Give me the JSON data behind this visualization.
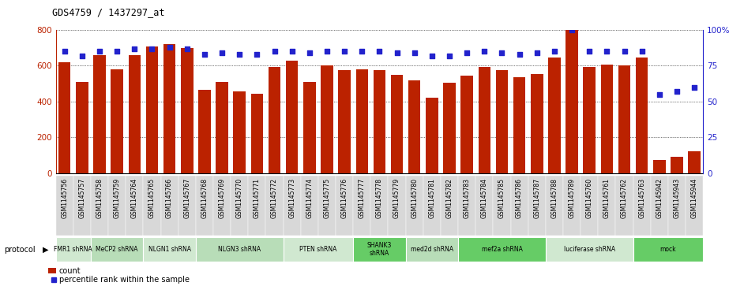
{
  "title": "GDS4759 / 1437297_at",
  "samples": [
    "GSM1145756",
    "GSM1145757",
    "GSM1145758",
    "GSM1145759",
    "GSM1145764",
    "GSM1145765",
    "GSM1145766",
    "GSM1145767",
    "GSM1145768",
    "GSM1145769",
    "GSM1145770",
    "GSM1145771",
    "GSM1145772",
    "GSM1145773",
    "GSM1145774",
    "GSM1145775",
    "GSM1145776",
    "GSM1145777",
    "GSM1145778",
    "GSM1145779",
    "GSM1145780",
    "GSM1145781",
    "GSM1145782",
    "GSM1145783",
    "GSM1145784",
    "GSM1145785",
    "GSM1145786",
    "GSM1145787",
    "GSM1145788",
    "GSM1145789",
    "GSM1145760",
    "GSM1145761",
    "GSM1145762",
    "GSM1145763",
    "GSM1145942",
    "GSM1145943",
    "GSM1145944"
  ],
  "counts": [
    620,
    510,
    660,
    580,
    660,
    710,
    720,
    700,
    465,
    510,
    455,
    445,
    595,
    630,
    510,
    600,
    575,
    580,
    575,
    550,
    520,
    420,
    505,
    545,
    595,
    575,
    535,
    555,
    645,
    800,
    595,
    605,
    600,
    645,
    75,
    90,
    120
  ],
  "percentiles": [
    85,
    82,
    85,
    85,
    87,
    87,
    88,
    87,
    83,
    84,
    83,
    83,
    85,
    85,
    84,
    85,
    85,
    85,
    85,
    84,
    84,
    82,
    82,
    84,
    85,
    84,
    83,
    84,
    85,
    100,
    85,
    85,
    85,
    85,
    55,
    57,
    60
  ],
  "protocols": [
    {
      "label": "FMR1 shRNA",
      "start": 0,
      "end": 2,
      "color": "#d0e8d0"
    },
    {
      "label": "MeCP2 shRNA",
      "start": 2,
      "end": 5,
      "color": "#b8ddb8"
    },
    {
      "label": "NLGN1 shRNA",
      "start": 5,
      "end": 8,
      "color": "#d0e8d0"
    },
    {
      "label": "NLGN3 shRNA",
      "start": 8,
      "end": 13,
      "color": "#b8ddb8"
    },
    {
      "label": "PTEN shRNA",
      "start": 13,
      "end": 17,
      "color": "#d0e8d0"
    },
    {
      "label": "SHANK3\nshRNA",
      "start": 17,
      "end": 20,
      "color": "#66cc66"
    },
    {
      "label": "med2d shRNA",
      "start": 20,
      "end": 23,
      "color": "#b8ddb8"
    },
    {
      "label": "mef2a shRNA",
      "start": 23,
      "end": 28,
      "color": "#66cc66"
    },
    {
      "label": "luciferase shRNA",
      "start": 28,
      "end": 33,
      "color": "#d0e8d0"
    },
    {
      "label": "mock",
      "start": 33,
      "end": 37,
      "color": "#66cc66"
    }
  ],
  "bar_color": "#BB2200",
  "dot_color": "#2222CC",
  "ylim_left": [
    0,
    800
  ],
  "ylim_right": [
    0,
    100
  ],
  "yticks_left": [
    0,
    200,
    400,
    600,
    800
  ],
  "yticks_right": [
    0,
    25,
    50,
    75,
    100
  ],
  "chart_bg": "#ffffff",
  "label_bg": "#d8d8d8",
  "legend_count_color": "#BB2200",
  "legend_dot_color": "#2222CC"
}
